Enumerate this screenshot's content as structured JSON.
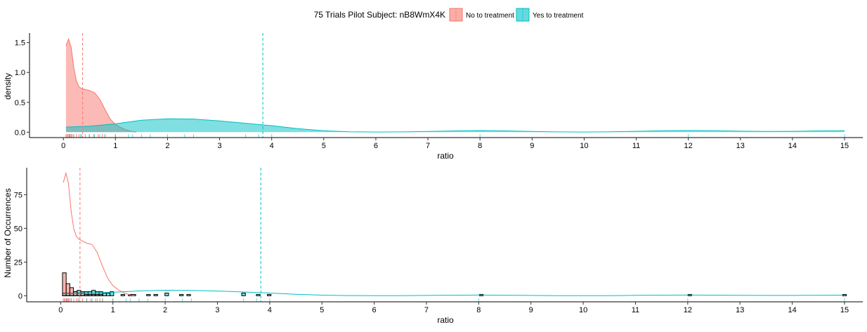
{
  "legend": {
    "title": "75 Trials Pilot Subject:  nB8WmX4K",
    "position": "top",
    "items": [
      {
        "label": "No to treatment",
        "color": "#F8766D"
      },
      {
        "label": "Yes to treatment",
        "color": "#00BFC4"
      }
    ]
  },
  "colors": {
    "no": "#F8766D",
    "yes": "#00BFC4",
    "axis": "#000000",
    "text": "#000000"
  },
  "chart_data": [
    {
      "type": "area",
      "title": "",
      "xlabel": "ratio",
      "ylabel": "density",
      "xlim": [
        -0.65,
        15.35
      ],
      "ylim": [
        -0.09,
        1.66
      ],
      "xticks": [
        0,
        1,
        2,
        3,
        4,
        5,
        6,
        7,
        8,
        9,
        10,
        11,
        12,
        13,
        14,
        15
      ],
      "yticks": [
        0.0,
        0.5,
        1.0,
        1.5
      ],
      "ytick_labels": [
        "0.0",
        "0.5",
        "1.0",
        "1.5"
      ],
      "grid": false,
      "series": [
        {
          "name": "No to treatment",
          "x": [
            0.05,
            0.1,
            0.15,
            0.2,
            0.25,
            0.3,
            0.35,
            0.4,
            0.5,
            0.6,
            0.7,
            0.8,
            0.9,
            1.0,
            1.1,
            1.2,
            1.3,
            1.4
          ],
          "y": [
            1.45,
            1.56,
            1.42,
            1.08,
            0.86,
            0.76,
            0.73,
            0.72,
            0.7,
            0.66,
            0.55,
            0.38,
            0.22,
            0.13,
            0.08,
            0.04,
            0.015,
            0.0
          ]
        },
        {
          "name": "Yes to treatment",
          "x": [
            0.05,
            0.5,
            1.0,
            1.5,
            2.0,
            2.5,
            3.0,
            3.5,
            4.0,
            4.5,
            5.0,
            5.5,
            6.0,
            6.5,
            7.0,
            7.5,
            8.0,
            8.5,
            9.0,
            9.5,
            10.0,
            10.5,
            11.0,
            11.5,
            12.0,
            12.5,
            13.0,
            13.5,
            14.0,
            14.5,
            15.0
          ],
          "y": [
            0.085,
            0.1,
            0.14,
            0.2,
            0.225,
            0.22,
            0.19,
            0.15,
            0.11,
            0.06,
            0.025,
            0.008,
            0.003,
            0.005,
            0.012,
            0.022,
            0.027,
            0.022,
            0.012,
            0.005,
            0.003,
            0.006,
            0.015,
            0.024,
            0.027,
            0.024,
            0.017,
            0.013,
            0.014,
            0.021,
            0.025
          ]
        }
      ],
      "mean_lines": [
        {
          "series": "No to treatment",
          "x": 0.37
        },
        {
          "series": "Yes to treatment",
          "x": 3.83
        }
      ],
      "rug": {
        "No to treatment": [
          0.05,
          0.07,
          0.09,
          0.11,
          0.13,
          0.15,
          0.17,
          0.2,
          0.25,
          0.3,
          0.35,
          0.42,
          0.5,
          0.58,
          0.67,
          0.75,
          0.8,
          1.0
        ],
        "Yes to treatment": [
          0.12,
          0.2,
          0.33,
          0.5,
          0.6,
          0.7,
          0.8,
          1.0,
          1.25,
          1.33,
          1.5,
          1.67,
          2.0,
          2.33,
          2.5,
          3.5,
          3.75,
          4.0,
          8.0,
          12.0,
          15.0
        ]
      }
    },
    {
      "type": "bar",
      "title": "",
      "xlabel": "ratio",
      "ylabel": "Number of Occurrences",
      "xlim": [
        -0.65,
        15.35
      ],
      "ylim": [
        -4.5,
        95
      ],
      "xticks": [
        0,
        1,
        2,
        3,
        4,
        5,
        6,
        7,
        8,
        9,
        10,
        11,
        12,
        13,
        14,
        15
      ],
      "yticks": [
        0,
        25,
        50,
        75
      ],
      "ytick_labels": [
        "0",
        "25",
        "50",
        "75"
      ],
      "grid": false,
      "bins": {
        "x": [
          0.07,
          0.14,
          0.21,
          0.28,
          0.35,
          0.42,
          0.49,
          0.56,
          0.63,
          0.7,
          0.77,
          0.84,
          0.91,
          0.98,
          1.19,
          1.33,
          1.4,
          1.68,
          1.82,
          2.03,
          2.31,
          2.45,
          3.5,
          3.78,
          3.99,
          8.05,
          12.04,
          15.0
        ],
        "no": [
          17,
          9,
          6,
          3,
          2,
          2,
          1,
          1,
          1,
          1,
          1,
          0,
          0,
          0,
          0,
          0,
          0,
          0,
          0,
          0,
          0,
          0,
          0,
          0,
          0,
          0,
          0,
          0
        ],
        "yes": [
          2,
          2,
          2,
          3,
          4,
          3,
          3,
          3,
          4,
          3,
          3,
          2,
          2,
          3,
          1,
          1,
          1,
          1,
          1,
          2,
          1,
          1,
          2,
          1,
          1,
          1,
          1,
          1
        ]
      },
      "series": [
        {
          "name": "No to treatment",
          "x": [
            0.05,
            0.1,
            0.15,
            0.2,
            0.25,
            0.3,
            0.35,
            0.4,
            0.5,
            0.6,
            0.7,
            0.8,
            0.9,
            1.0,
            1.1,
            1.2,
            1.3,
            1.4
          ],
          "y": [
            84,
            91,
            83,
            63,
            50,
            44,
            42,
            41,
            39,
            38,
            32,
            22,
            13,
            7.5,
            4.5,
            2.3,
            0.9,
            0.0
          ]
        },
        {
          "name": "Yes to treatment",
          "x": [
            0.05,
            0.5,
            1.0,
            1.5,
            2.0,
            2.5,
            3.0,
            3.5,
            4.0,
            4.5,
            5.0,
            5.5,
            6.0,
            6.5,
            7.0,
            7.5,
            8.0,
            8.5,
            9.0,
            9.5,
            10.0,
            10.5,
            11.0,
            11.5,
            12.0,
            12.5,
            13.0,
            13.5,
            14.0,
            14.5,
            15.0
          ],
          "y": [
            1.5,
            1.9,
            2.6,
            3.6,
            4.1,
            4.0,
            3.5,
            2.8,
            2.0,
            1.1,
            0.45,
            0.15,
            0.06,
            0.09,
            0.22,
            0.4,
            0.5,
            0.4,
            0.22,
            0.09,
            0.06,
            0.11,
            0.27,
            0.44,
            0.5,
            0.44,
            0.31,
            0.24,
            0.26,
            0.39,
            0.45
          ]
        }
      ],
      "mean_lines": [
        {
          "series": "No to treatment",
          "x": 0.37
        },
        {
          "series": "Yes to treatment",
          "x": 3.83
        }
      ],
      "rug": {
        "No to treatment": [
          0.05,
          0.07,
          0.09,
          0.11,
          0.13,
          0.15,
          0.17,
          0.2,
          0.25,
          0.3,
          0.35,
          0.42,
          0.5,
          0.58,
          0.67,
          0.75,
          0.8,
          1.0
        ],
        "Yes to treatment": [
          0.12,
          0.2,
          0.33,
          0.5,
          0.6,
          0.7,
          0.8,
          1.0,
          1.25,
          1.33,
          1.5,
          1.67,
          2.0,
          2.33,
          2.5,
          3.5,
          3.75,
          4.0,
          8.0,
          12.0,
          15.0
        ]
      }
    }
  ]
}
